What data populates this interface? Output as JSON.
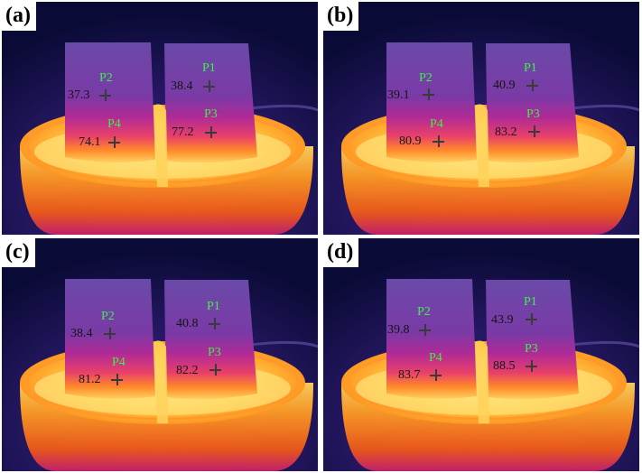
{
  "panels": [
    {
      "label": "(a)",
      "points": [
        {
          "name": "P2",
          "value": "37.3"
        },
        {
          "name": "P1",
          "value": "38.4"
        },
        {
          "name": "P4",
          "value": "74.1"
        },
        {
          "name": "P3",
          "value": "77.2"
        }
      ]
    },
    {
      "label": "(b)",
      "points": [
        {
          "name": "P2",
          "value": "39.1"
        },
        {
          "name": "P1",
          "value": "40.9"
        },
        {
          "name": "P4",
          "value": "80.9"
        },
        {
          "name": "P3",
          "value": "83.2"
        }
      ]
    },
    {
      "label": "(c)",
      "points": [
        {
          "name": "P2",
          "value": "38.4"
        },
        {
          "name": "P1",
          "value": "40.8"
        },
        {
          "name": "P4",
          "value": "81.2"
        },
        {
          "name": "P3",
          "value": "82.2"
        }
      ]
    },
    {
      "label": "(d)",
      "points": [
        {
          "name": "P2",
          "value": "39.8"
        },
        {
          "name": "P1",
          "value": "43.9"
        },
        {
          "name": "P4",
          "value": "83.7"
        },
        {
          "name": "P3",
          "value": "88.5"
        }
      ]
    }
  ],
  "colors": {
    "hot": "#ffe070",
    "warm": "#ff8a1a",
    "mid": "#d8208a",
    "cool": "#5a2fa0",
    "bg": "#0a0a36",
    "point_label": "#3ef04a",
    "value_text": "#141414"
  }
}
